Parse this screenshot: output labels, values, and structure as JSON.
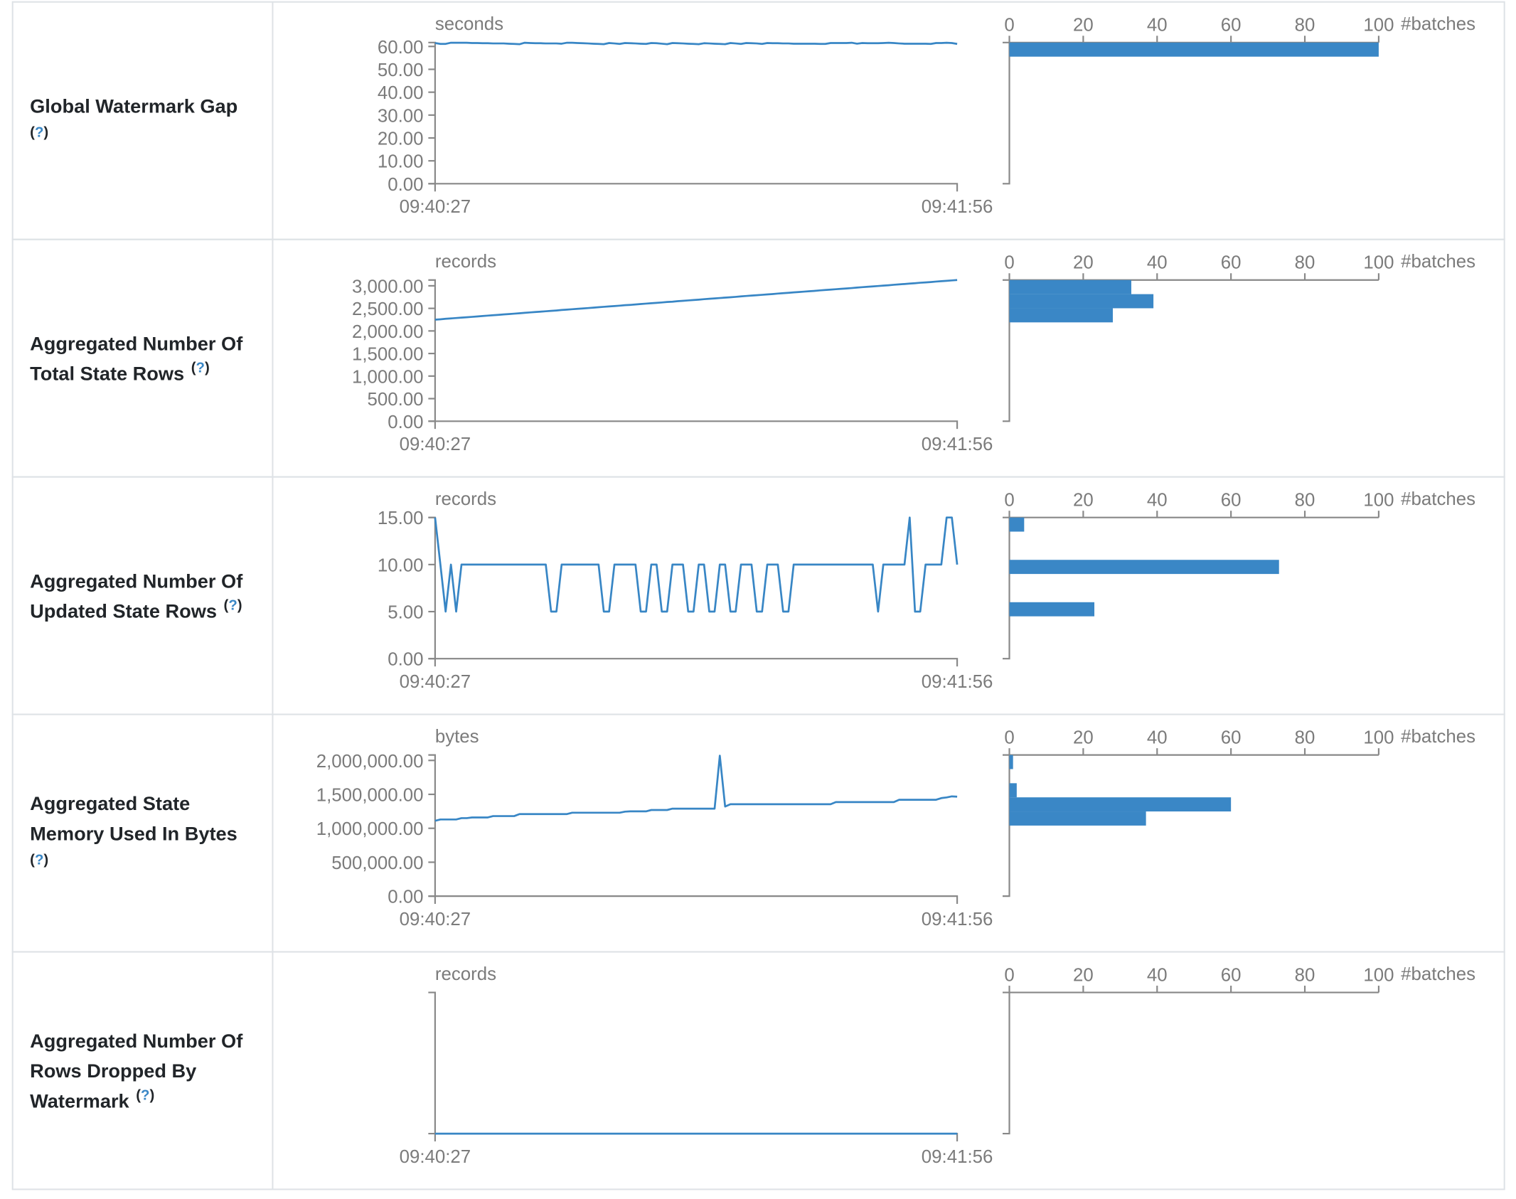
{
  "colors": {
    "series": "#3886c5",
    "bar": "#3a87c6",
    "help": "#3a87c6",
    "axis": "#888888",
    "border": "#dee2e6"
  },
  "help_icon": {
    "open": "(",
    "mark": "?",
    "close": ")"
  },
  "chart_data": [
    {
      "type": "line",
      "metric": {
        "lines": [
          "Global Watermark Gap"
        ],
        "help": "newline"
      },
      "unit": "seconds",
      "x_labels": [
        "09:40:27",
        "09:41:56"
      ],
      "ylim": [
        0,
        61.7
      ],
      "y_ticks": [
        {
          "value": 0,
          "label": "0.00"
        },
        {
          "value": 10,
          "label": "10.00"
        },
        {
          "value": 20,
          "label": "20.00"
        },
        {
          "value": 30,
          "label": "30.00"
        },
        {
          "value": 40,
          "label": "40.00"
        },
        {
          "value": 50,
          "label": "50.00"
        },
        {
          "value": 60,
          "label": "60.00"
        }
      ],
      "values": [
        61.5,
        61.1,
        61.1,
        61.6,
        61.6,
        61.6,
        61.6,
        61.5,
        61.5,
        61.4,
        61.4,
        61.3,
        61.3,
        61.3,
        61.2,
        61.1,
        61.0,
        61.6,
        61.5,
        61.4,
        61.4,
        61.3,
        61.3,
        61.3,
        61.2,
        61.6,
        61.6,
        61.5,
        61.4,
        61.3,
        61.2,
        61.1,
        61.0,
        61.5,
        61.3,
        61.1,
        61.5,
        61.4,
        61.3,
        61.2,
        61.1,
        61.5,
        61.4,
        61.2,
        61.0,
        61.5,
        61.4,
        61.3,
        61.2,
        61.1,
        61.0,
        61.4,
        61.3,
        61.2,
        61.1,
        61.0,
        61.5,
        61.3,
        61.1,
        61.5,
        61.4,
        61.3,
        61.1,
        61.5,
        61.4,
        61.4,
        61.3,
        61.3,
        61.2,
        61.2,
        61.2,
        61.2,
        61.2,
        61.1,
        61.1,
        61.5,
        61.5,
        61.5,
        61.5,
        61.6,
        61.2,
        61.5,
        61.4,
        61.4,
        61.4,
        61.5,
        61.6,
        61.5,
        61.3,
        61.2,
        61.2,
        61.2,
        61.2,
        61.2,
        61.1,
        61.5,
        61.5,
        61.6,
        61.5,
        61.1
      ],
      "histogram": {
        "xlabel": "#batches",
        "xlim": [
          0,
          100
        ],
        "x_ticks": [
          0,
          20,
          40,
          60,
          80,
          100
        ],
        "bin_counts": [
          0,
          0,
          0,
          0,
          0,
          0,
          0,
          0,
          0,
          100
        ]
      }
    },
    {
      "type": "line",
      "metric": {
        "lines": [
          "Aggregated Number Of",
          "Total State Rows"
        ],
        "help": "inline"
      },
      "unit": "records",
      "x_labels": [
        "09:40:27",
        "09:41:56"
      ],
      "ylim": [
        0,
        3128
      ],
      "y_ticks": [
        {
          "value": 0,
          "label": "0.00"
        },
        {
          "value": 500,
          "label": "500.00"
        },
        {
          "value": 1000,
          "label": "1,000.00"
        },
        {
          "value": 1500,
          "label": "1,500.00"
        },
        {
          "value": 2000,
          "label": "2,000.00"
        },
        {
          "value": 2500,
          "label": "2,500.00"
        },
        {
          "value": 3000,
          "label": "3,000.00"
        }
      ],
      "values": [
        2250,
        2259,
        2268,
        2277,
        2285,
        2294,
        2303,
        2312,
        2321,
        2330,
        2339,
        2348,
        2356,
        2365,
        2374,
        2383,
        2392,
        2401,
        2410,
        2419,
        2427,
        2436,
        2445,
        2454,
        2463,
        2472,
        2481,
        2490,
        2498,
        2507,
        2516,
        2525,
        2534,
        2543,
        2552,
        2561,
        2570,
        2578,
        2587,
        2596,
        2605,
        2614,
        2623,
        2632,
        2641,
        2649,
        2658,
        2667,
        2676,
        2685,
        2694,
        2703,
        2712,
        2720,
        2729,
        2738,
        2747,
        2756,
        2765,
        2774,
        2783,
        2791,
        2800,
        2809,
        2818,
        2827,
        2836,
        2845,
        2854,
        2862,
        2871,
        2880,
        2889,
        2898,
        2907,
        2916,
        2925,
        2933,
        2942,
        2951,
        2960,
        2969,
        2978,
        2987,
        2996,
        3004,
        3013,
        3022,
        3031,
        3040,
        3049,
        3058,
        3067,
        3075,
        3084,
        3093,
        3102,
        3111,
        3120,
        3128
      ],
      "histogram": {
        "xlabel": "#batches",
        "xlim": [
          0,
          100
        ],
        "x_ticks": [
          0,
          20,
          40,
          60,
          80,
          100
        ],
        "bin_counts": [
          0,
          0,
          0,
          0,
          0,
          0,
          0,
          28,
          39,
          33
        ]
      }
    },
    {
      "type": "line",
      "metric": {
        "lines": [
          "Aggregated Number Of",
          "Updated State Rows"
        ],
        "help": "inline"
      },
      "unit": "records",
      "x_labels": [
        "09:40:27",
        "09:41:56"
      ],
      "ylim": [
        0,
        15
      ],
      "y_ticks": [
        {
          "value": 0,
          "label": "0.00"
        },
        {
          "value": 5,
          "label": "5.00"
        },
        {
          "value": 10,
          "label": "10.00"
        },
        {
          "value": 15,
          "label": "15.00"
        }
      ],
      "values": [
        15,
        10,
        5,
        10,
        5,
        10,
        10,
        10,
        10,
        10,
        10,
        10,
        10,
        10,
        10,
        10,
        10,
        10,
        10,
        10,
        10,
        10,
        5,
        5,
        10,
        10,
        10,
        10,
        10,
        10,
        10,
        10,
        5,
        5,
        10,
        10,
        10,
        10,
        10,
        5,
        5,
        10,
        10,
        5,
        5,
        10,
        10,
        10,
        5,
        5,
        10,
        10,
        5,
        5,
        10,
        10,
        5,
        5,
        10,
        10,
        10,
        5,
        5,
        10,
        10,
        10,
        5,
        5,
        10,
        10,
        10,
        10,
        10,
        10,
        10,
        10,
        10,
        10,
        10,
        10,
        10,
        10,
        10,
        10,
        5,
        10,
        10,
        10,
        10,
        10,
        15,
        5,
        5,
        10,
        10,
        10,
        10,
        15,
        15,
        10
      ],
      "histogram": {
        "xlabel": "#batches",
        "xlim": [
          0,
          100
        ],
        "x_ticks": [
          0,
          20,
          40,
          60,
          80,
          100
        ],
        "bin_counts": [
          0,
          0,
          0,
          23,
          0,
          0,
          73,
          0,
          0,
          4
        ]
      }
    },
    {
      "type": "line",
      "metric": {
        "lines": [
          "Aggregated State",
          "Memory Used In Bytes"
        ],
        "help": "newline"
      },
      "unit": "bytes",
      "x_labels": [
        "09:40:27",
        "09:41:56"
      ],
      "ylim": [
        0,
        2080000
      ],
      "y_ticks": [
        {
          "value": 0,
          "label": "0.00"
        },
        {
          "value": 500000,
          "label": "500,000.00"
        },
        {
          "value": 1000000,
          "label": "1,000,000.00"
        },
        {
          "value": 1500000,
          "label": "1,500,000.00"
        },
        {
          "value": 2000000,
          "label": "2,000,000.00"
        }
      ],
      "values": [
        1110000,
        1130000,
        1130000,
        1130000,
        1130000,
        1150000,
        1150000,
        1160000,
        1160000,
        1160000,
        1160000,
        1180000,
        1180000,
        1180000,
        1180000,
        1180000,
        1210000,
        1210000,
        1210000,
        1210000,
        1210000,
        1210000,
        1210000,
        1210000,
        1210000,
        1210000,
        1230000,
        1230000,
        1230000,
        1230000,
        1230000,
        1230000,
        1230000,
        1230000,
        1230000,
        1230000,
        1245000,
        1250000,
        1250000,
        1250000,
        1250000,
        1270000,
        1270000,
        1270000,
        1270000,
        1290000,
        1290000,
        1290000,
        1290000,
        1290000,
        1290000,
        1290000,
        1290000,
        1290000,
        2070000,
        1320000,
        1355000,
        1355000,
        1355000,
        1355000,
        1355000,
        1355000,
        1355000,
        1355000,
        1355000,
        1355000,
        1355000,
        1355000,
        1355000,
        1355000,
        1355000,
        1355000,
        1355000,
        1355000,
        1355000,
        1355000,
        1386000,
        1386000,
        1386000,
        1386000,
        1386000,
        1386000,
        1386000,
        1386000,
        1386000,
        1386000,
        1386000,
        1386000,
        1420000,
        1420000,
        1420000,
        1420000,
        1420000,
        1420000,
        1420000,
        1420000,
        1445000,
        1455000,
        1470000,
        1466000
      ],
      "histogram": {
        "xlabel": "#batches",
        "xlim": [
          0,
          100
        ],
        "x_ticks": [
          0,
          20,
          40,
          60,
          80,
          100
        ],
        "bin_counts": [
          0,
          0,
          0,
          0,
          0,
          37,
          60,
          2,
          0,
          1
        ]
      }
    },
    {
      "type": "line",
      "metric": {
        "lines": [
          "Aggregated Number Of",
          "Rows Dropped By",
          "Watermark"
        ],
        "help": "inline"
      },
      "unit": "records",
      "x_labels": [
        "09:40:27",
        "09:41:56"
      ],
      "ylim": [
        0,
        1
      ],
      "y_ticks": [],
      "values": [
        0,
        0,
        0,
        0,
        0,
        0,
        0,
        0,
        0,
        0,
        0,
        0,
        0,
        0,
        0,
        0,
        0,
        0,
        0,
        0,
        0,
        0,
        0,
        0,
        0,
        0,
        0,
        0,
        0,
        0,
        0,
        0,
        0,
        0,
        0,
        0,
        0,
        0,
        0,
        0,
        0,
        0,
        0,
        0,
        0,
        0,
        0,
        0,
        0,
        0,
        0,
        0,
        0,
        0,
        0,
        0,
        0,
        0,
        0,
        0,
        0,
        0,
        0,
        0,
        0,
        0,
        0,
        0,
        0,
        0,
        0,
        0,
        0,
        0,
        0,
        0,
        0,
        0,
        0,
        0,
        0,
        0,
        0,
        0,
        0,
        0,
        0,
        0,
        0,
        0,
        0,
        0,
        0,
        0,
        0,
        0,
        0,
        0,
        0,
        0
      ],
      "histogram": {
        "xlabel": "#batches",
        "xlim": [
          0,
          100
        ],
        "x_ticks": [
          0,
          20,
          40,
          60,
          80,
          100
        ],
        "bin_counts": []
      }
    }
  ]
}
